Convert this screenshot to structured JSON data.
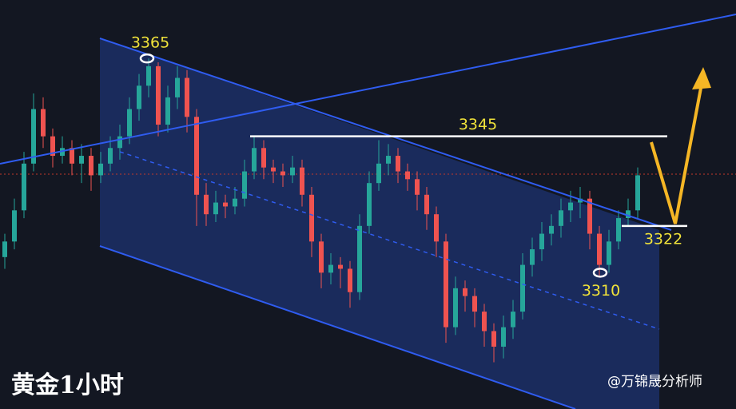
{
  "chart_data": {
    "type": "candlestick",
    "title": "黄金1小时",
    "source": "@万锦晟分析师",
    "up_color": "#26a69a",
    "down_color": "#ef5350",
    "ylim": [
      3275,
      3380
    ],
    "open": [
      3314,
      3318,
      3326,
      3338,
      3352,
      3345,
      3340,
      3342,
      3338,
      3340,
      3335,
      3338,
      3342,
      3345,
      3352,
      3358,
      3363,
      3348,
      3355,
      3360,
      3350,
      3330,
      3325,
      3328,
      3327,
      3329,
      3336,
      3342,
      3337,
      3336,
      3335,
      3337,
      3330,
      3318,
      3310,
      3312,
      3311,
      3305,
      3322,
      3333,
      3338,
      3340,
      3336,
      3334,
      3330,
      3325,
      3318,
      3296,
      3306,
      3304,
      3300,
      3295,
      3291,
      3296,
      3300,
      3312,
      3316,
      3320,
      3322,
      3326,
      3328,
      3329,
      3320,
      3312,
      3318,
      3324,
      3326
    ],
    "high": [
      3320,
      3329,
      3341,
      3356,
      3355,
      3347,
      3345,
      3344,
      3343,
      3342,
      3341,
      3345,
      3348,
      3355,
      3361,
      3365,
      3364,
      3358,
      3363,
      3362,
      3352,
      3333,
      3331,
      3330,
      3332,
      3339,
      3345,
      3344,
      3339,
      3338,
      3340,
      3339,
      3332,
      3320,
      3315,
      3314,
      3313,
      3325,
      3336,
      3344,
      3343,
      3342,
      3338,
      3336,
      3332,
      3327,
      3320,
      3309,
      3308,
      3306,
      3302,
      3297,
      3299,
      3303,
      3315,
      3319,
      3323,
      3325,
      3329,
      3331,
      3332,
      3331,
      3322,
      3321,
      3326,
      3329,
      3337
    ],
    "low": [
      3311,
      3316,
      3324,
      3336,
      3342,
      3337,
      3338,
      3335,
      3333,
      3331,
      3333,
      3336,
      3339,
      3343,
      3349,
      3355,
      3345,
      3346,
      3352,
      3346,
      3322,
      3322,
      3323,
      3324,
      3325,
      3327,
      3334,
      3334,
      3333,
      3332,
      3333,
      3327,
      3314,
      3306,
      3307,
      3306,
      3301,
      3303,
      3320,
      3331,
      3335,
      3333,
      3331,
      3326,
      3321,
      3314,
      3292,
      3294,
      3300,
      3296,
      3291,
      3287,
      3288,
      3293,
      3298,
      3309,
      3313,
      3317,
      3319,
      3323,
      3324,
      3316,
      3309,
      3310,
      3316,
      3322,
      3324
    ],
    "close": [
      3318,
      3326,
      3338,
      3352,
      3345,
      3340,
      3342,
      3338,
      3340,
      3335,
      3338,
      3342,
      3345,
      3352,
      3358,
      3363,
      3348,
      3355,
      3360,
      3350,
      3330,
      3325,
      3328,
      3327,
      3329,
      3336,
      3342,
      3337,
      3336,
      3335,
      3337,
      3330,
      3318,
      3310,
      3312,
      3311,
      3305,
      3322,
      3333,
      3338,
      3340,
      3336,
      3334,
      3330,
      3325,
      3318,
      3296,
      3306,
      3304,
      3300,
      3295,
      3291,
      3296,
      3300,
      3312,
      3316,
      3320,
      3322,
      3326,
      3328,
      3329,
      3320,
      3312,
      3318,
      3324,
      3326,
      3335
    ],
    "levels": [
      3365,
      3345,
      3322,
      3310
    ]
  }
}
